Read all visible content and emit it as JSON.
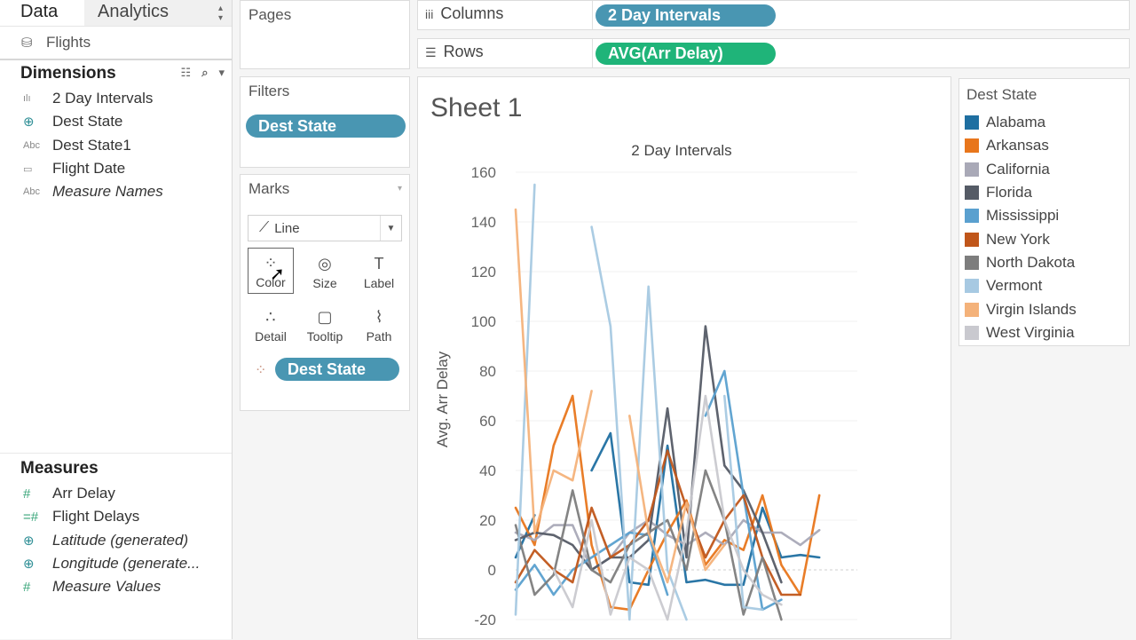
{
  "data_pane": {
    "tab_data": "Data",
    "tab_analytics": "Analytics",
    "datasource": "Flights",
    "dimensions_header": "Dimensions",
    "dimensions": [
      {
        "icon": "bar-chart-icon",
        "glyph": "ılı",
        "label": "2 Day Intervals",
        "italic": false
      },
      {
        "icon": "globe-icon",
        "glyph": "⊕",
        "label": "Dest State",
        "italic": false
      },
      {
        "icon": "abc-icon",
        "glyph": "Abc",
        "label": "Dest State1",
        "italic": false
      },
      {
        "icon": "calendar-icon",
        "glyph": "▭",
        "label": "Flight Date",
        "italic": false
      },
      {
        "icon": "abc-icon",
        "glyph": "Abc",
        "label": "Measure Names",
        "italic": true
      }
    ],
    "measures_header": "Measures",
    "measures": [
      {
        "icon": "hash-icon",
        "glyph": "#",
        "label": "Arr Delay",
        "italic": false
      },
      {
        "icon": "hash-icon",
        "glyph": "=#",
        "label": "Flight Delays",
        "italic": false
      },
      {
        "icon": "globe-icon",
        "glyph": "⊕",
        "label": "Latitude (generated)",
        "italic": true
      },
      {
        "icon": "globe-icon",
        "glyph": "⊕",
        "label": "Longitude (generate...",
        "italic": true
      },
      {
        "icon": "hash-icon",
        "glyph": "#",
        "label": "Measure Values",
        "italic": true
      }
    ]
  },
  "shelves": {
    "pages": "Pages",
    "filters": "Filters",
    "filter_pill": "Dest State",
    "marks": "Marks",
    "mark_type": "Line",
    "mark_buttons": [
      {
        "name": "color",
        "label": "Color",
        "glyph": "⁘"
      },
      {
        "name": "size",
        "label": "Size",
        "glyph": "◎"
      },
      {
        "name": "label",
        "label": "Label",
        "glyph": "T"
      },
      {
        "name": "detail",
        "label": "Detail",
        "glyph": "∴"
      },
      {
        "name": "tooltip",
        "label": "Tooltip",
        "glyph": "▢"
      },
      {
        "name": "path",
        "label": "Path",
        "glyph": "⌇"
      }
    ],
    "color_pill": "Dest State",
    "columns_label": "Columns",
    "columns_pill": "2 Day Intervals",
    "rows_label": "Rows",
    "rows_pill": "AVG(Arr Delay)"
  },
  "sheet_title": "Sheet 1",
  "legend": {
    "title": "Dest State",
    "items": [
      {
        "label": "Alabama",
        "color": "#1f6fa1"
      },
      {
        "label": "Arkansas",
        "color": "#e8761c"
      },
      {
        "label": "California",
        "color": "#a9a9b7"
      },
      {
        "label": "Florida",
        "color": "#555b66"
      },
      {
        "label": "Mississippi",
        "color": "#5aa0cf"
      },
      {
        "label": "New York",
        "color": "#c0561a"
      },
      {
        "label": "North Dakota",
        "color": "#7d7d7d"
      },
      {
        "label": "Vermont",
        "color": "#a7c9e2"
      },
      {
        "label": "Virgin Islands",
        "color": "#f4b27a"
      },
      {
        "label": "West Virginia",
        "color": "#c9c9cf"
      }
    ]
  },
  "chart_data": {
    "type": "line",
    "title": "2 Day Intervals",
    "ylabel": "Avg. Arr Delay",
    "ylim": [
      -20,
      160
    ],
    "yticks": [
      160,
      140,
      120,
      100,
      80,
      60,
      40,
      20,
      0,
      -20
    ],
    "x": [
      1,
      2,
      3,
      4,
      5,
      6,
      7,
      8,
      9,
      10,
      11,
      12,
      13,
      14,
      15,
      16,
      17,
      18,
      19
    ],
    "series": [
      {
        "name": "Alabama",
        "values": [
          5,
          22,
          null,
          null,
          40,
          55,
          -5,
          -6,
          50,
          -5,
          -4,
          -6,
          -6,
          25,
          5,
          6,
          5,
          null,
          null
        ]
      },
      {
        "name": "Arkansas",
        "values": [
          25,
          10,
          50,
          70,
          10,
          -15,
          -16,
          0,
          15,
          28,
          2,
          12,
          8,
          30,
          2,
          -10,
          30,
          null,
          null
        ]
      },
      {
        "name": "California",
        "values": [
          15,
          12,
          18,
          18,
          0,
          5,
          15,
          20,
          14,
          10,
          15,
          10,
          20,
          15,
          15,
          10,
          16,
          null,
          null
        ]
      },
      {
        "name": "Florida",
        "values": [
          12,
          15,
          14,
          10,
          0,
          5,
          5,
          12,
          65,
          5,
          98,
          42,
          32,
          15,
          -5,
          null,
          null,
          null,
          null
        ]
      },
      {
        "name": "Mississippi",
        "values": [
          -8,
          2,
          -10,
          0,
          5,
          10,
          15,
          14,
          -10,
          null,
          62,
          80,
          30,
          -16,
          -12,
          null,
          null,
          null,
          null
        ]
      },
      {
        "name": "New York",
        "values": [
          -5,
          8,
          0,
          -5,
          25,
          5,
          10,
          20,
          48,
          25,
          5,
          20,
          30,
          5,
          -10,
          -10,
          null,
          null,
          null
        ]
      },
      {
        "name": "North Dakota",
        "values": [
          18,
          -10,
          -2,
          32,
          0,
          -5,
          10,
          15,
          20,
          0,
          40,
          20,
          -18,
          5,
          -20,
          null,
          null,
          null,
          null
        ]
      },
      {
        "name": "Vermont",
        "values": [
          -18,
          155,
          null,
          null,
          138,
          98,
          -20,
          114,
          0,
          -20,
          null,
          70,
          -15,
          -16,
          null,
          null,
          null,
          null,
          null
        ]
      },
      {
        "name": "Virgin Islands",
        "values": [
          145,
          15,
          40,
          36,
          72,
          null,
          62,
          15,
          -5,
          27,
          0,
          10,
          null,
          null,
          null,
          null,
          null,
          null,
          null
        ]
      },
      {
        "name": "West Virginia",
        "values": [
          46,
          null,
          0,
          -15,
          20,
          -18,
          5,
          0,
          -20,
          15,
          70,
          20,
          0,
          -10,
          -14,
          null,
          null,
          null,
          null
        ]
      }
    ]
  }
}
